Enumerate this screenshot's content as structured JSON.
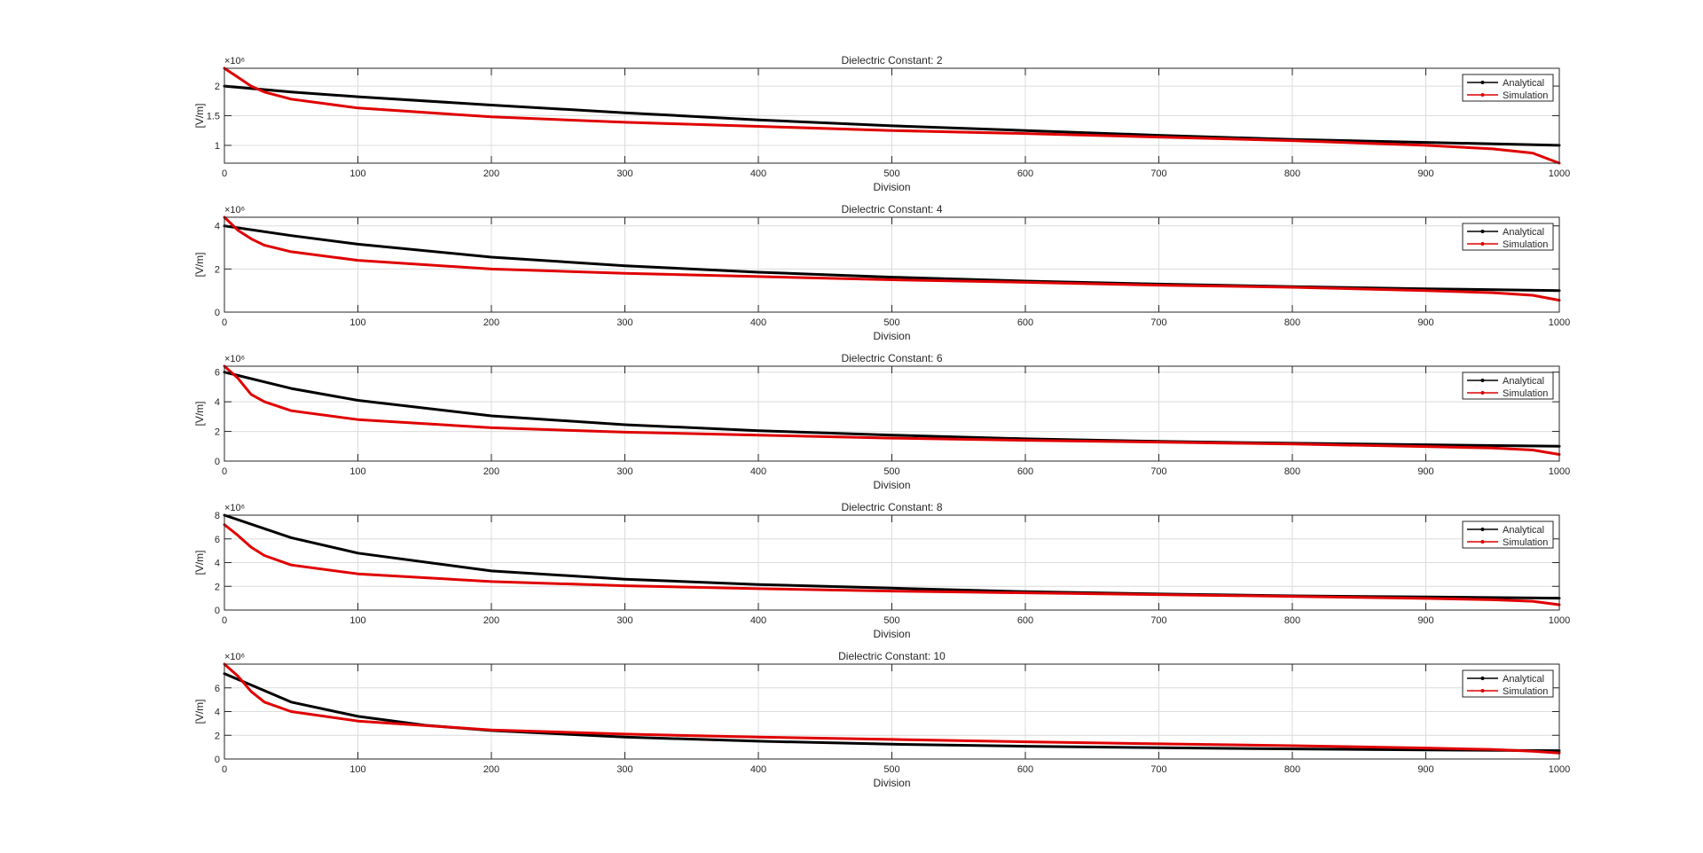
{
  "colors": {
    "analytical": "#000000",
    "simulation": "#e00000",
    "grid": "#dcdcdc",
    "axis": "#262626"
  },
  "chart_data": [
    {
      "type": "line",
      "title": "Dielectric Constant: 2",
      "xlabel": "Division",
      "ylabel": "[V/m]",
      "y_exponent": "×10⁶",
      "xlim": [
        0,
        1000
      ],
      "ylim": [
        700000,
        2300000
      ],
      "xticks": [
        0,
        100,
        200,
        300,
        400,
        500,
        600,
        700,
        800,
        900,
        1000
      ],
      "yticks": [
        1000000,
        1500000,
        2000000
      ],
      "ytick_labels": [
        "1",
        "1.5",
        "2"
      ],
      "grid": true,
      "legend": "top-right",
      "series": [
        {
          "name": "Analytical",
          "x": [
            0,
            50,
            100,
            200,
            300,
            400,
            500,
            600,
            700,
            800,
            900,
            1000
          ],
          "y": [
            2000000,
            1900000,
            1820000,
            1680000,
            1550000,
            1430000,
            1330000,
            1250000,
            1170000,
            1100000,
            1050000,
            1000000
          ]
        },
        {
          "name": "Simulation",
          "x": [
            0,
            10,
            20,
            30,
            50,
            100,
            200,
            300,
            400,
            500,
            600,
            700,
            800,
            900,
            950,
            980,
            1000
          ],
          "y": [
            2300000,
            2150000,
            2000000,
            1900000,
            1780000,
            1630000,
            1480000,
            1390000,
            1320000,
            1250000,
            1200000,
            1140000,
            1080000,
            1000000,
            940000,
            870000,
            700000
          ]
        }
      ]
    },
    {
      "type": "line",
      "title": "Dielectric Constant: 4",
      "xlabel": "Division",
      "ylabel": "[V/m]",
      "y_exponent": "×10⁶",
      "xlim": [
        0,
        1000
      ],
      "ylim": [
        0,
        4400000
      ],
      "xticks": [
        0,
        100,
        200,
        300,
        400,
        500,
        600,
        700,
        800,
        900,
        1000
      ],
      "yticks": [
        0,
        2000000,
        4000000
      ],
      "ytick_labels": [
        "0",
        "2",
        "4"
      ],
      "grid": true,
      "legend": "top-right",
      "series": [
        {
          "name": "Analytical",
          "x": [
            0,
            50,
            100,
            200,
            300,
            400,
            500,
            600,
            700,
            800,
            900,
            1000
          ],
          "y": [
            4000000,
            3550000,
            3150000,
            2550000,
            2150000,
            1850000,
            1620000,
            1440000,
            1300000,
            1180000,
            1080000,
            1000000
          ]
        },
        {
          "name": "Simulation",
          "x": [
            0,
            10,
            20,
            30,
            50,
            100,
            200,
            300,
            400,
            500,
            600,
            700,
            800,
            900,
            950,
            980,
            1000
          ],
          "y": [
            4400000,
            3800000,
            3400000,
            3100000,
            2800000,
            2400000,
            2000000,
            1800000,
            1650000,
            1500000,
            1380000,
            1250000,
            1150000,
            1000000,
            900000,
            780000,
            550000
          ]
        }
      ]
    },
    {
      "type": "line",
      "title": "Dielectric Constant: 6",
      "xlabel": "Division",
      "ylabel": "[V/m]",
      "y_exponent": "×10⁶",
      "xlim": [
        0,
        1000
      ],
      "ylim": [
        0,
        6400000
      ],
      "xticks": [
        0,
        100,
        200,
        300,
        400,
        500,
        600,
        700,
        800,
        900,
        1000
      ],
      "yticks": [
        0,
        2000000,
        4000000,
        6000000
      ],
      "ytick_labels": [
        "0",
        "2",
        "4",
        "6"
      ],
      "grid": true,
      "legend": "top-right",
      "series": [
        {
          "name": "Analytical",
          "x": [
            0,
            50,
            100,
            200,
            300,
            400,
            500,
            600,
            700,
            800,
            900,
            1000
          ],
          "y": [
            6000000,
            4900000,
            4100000,
            3050000,
            2450000,
            2050000,
            1750000,
            1500000,
            1330000,
            1200000,
            1100000,
            1000000
          ]
        },
        {
          "name": "Simulation",
          "x": [
            0,
            10,
            20,
            30,
            50,
            100,
            200,
            300,
            400,
            500,
            600,
            700,
            800,
            900,
            950,
            980,
            1000
          ],
          "y": [
            6400000,
            5600000,
            4500000,
            4000000,
            3400000,
            2800000,
            2250000,
            1950000,
            1750000,
            1550000,
            1400000,
            1280000,
            1150000,
            980000,
            880000,
            750000,
            450000
          ]
        }
      ]
    },
    {
      "type": "line",
      "title": "Dielectric Constant: 8",
      "xlabel": "Division",
      "ylabel": "[V/m]",
      "y_exponent": "×10⁶",
      "xlim": [
        0,
        1000
      ],
      "ylim": [
        0,
        8000000
      ],
      "xticks": [
        0,
        100,
        200,
        300,
        400,
        500,
        600,
        700,
        800,
        900,
        1000
      ],
      "yticks": [
        0,
        2000000,
        4000000,
        6000000,
        8000000
      ],
      "ytick_labels": [
        "0",
        "2",
        "4",
        "6",
        "8"
      ],
      "grid": true,
      "legend": "top-right",
      "series": [
        {
          "name": "Analytical",
          "x": [
            0,
            50,
            100,
            200,
            300,
            400,
            500,
            600,
            700,
            800,
            900,
            1000
          ],
          "y": [
            8000000,
            6100000,
            4800000,
            3300000,
            2600000,
            2150000,
            1850000,
            1550000,
            1350000,
            1200000,
            1100000,
            1000000
          ]
        },
        {
          "name": "Simulation",
          "x": [
            0,
            10,
            20,
            30,
            50,
            100,
            200,
            300,
            400,
            500,
            600,
            700,
            800,
            900,
            950,
            980,
            1000
          ],
          "y": [
            7200000,
            6300000,
            5300000,
            4600000,
            3800000,
            3050000,
            2400000,
            2050000,
            1800000,
            1600000,
            1450000,
            1300000,
            1150000,
            980000,
            870000,
            740000,
            450000
          ]
        }
      ]
    },
    {
      "type": "line",
      "title": "Dielectric Constant: 10",
      "xlabel": "Division",
      "ylabel": "[V/m]",
      "y_exponent": "×10⁶",
      "xlim": [
        0,
        1000
      ],
      "ylim": [
        0,
        8000000
      ],
      "xticks": [
        0,
        100,
        200,
        300,
        400,
        500,
        600,
        700,
        800,
        900,
        1000
      ],
      "yticks": [
        0,
        2000000,
        4000000,
        6000000
      ],
      "ytick_labels": [
        "0",
        "2",
        "4",
        "6"
      ],
      "grid": true,
      "legend": "top-right",
      "series": [
        {
          "name": "Analytical",
          "x": [
            0,
            50,
            100,
            150,
            200,
            300,
            400,
            500,
            600,
            700,
            800,
            900,
            1000
          ],
          "y": [
            7200000,
            4800000,
            3600000,
            2850000,
            2400000,
            1850000,
            1500000,
            1250000,
            1080000,
            950000,
            850000,
            760000,
            700000
          ]
        },
        {
          "name": "Simulation",
          "x": [
            0,
            10,
            20,
            30,
            50,
            100,
            200,
            300,
            400,
            500,
            600,
            700,
            800,
            900,
            950,
            980,
            1000
          ],
          "y": [
            8000000,
            7000000,
            5700000,
            4800000,
            4000000,
            3200000,
            2450000,
            2100000,
            1850000,
            1650000,
            1450000,
            1280000,
            1120000,
            930000,
            800000,
            650000,
            500000
          ]
        }
      ]
    }
  ]
}
